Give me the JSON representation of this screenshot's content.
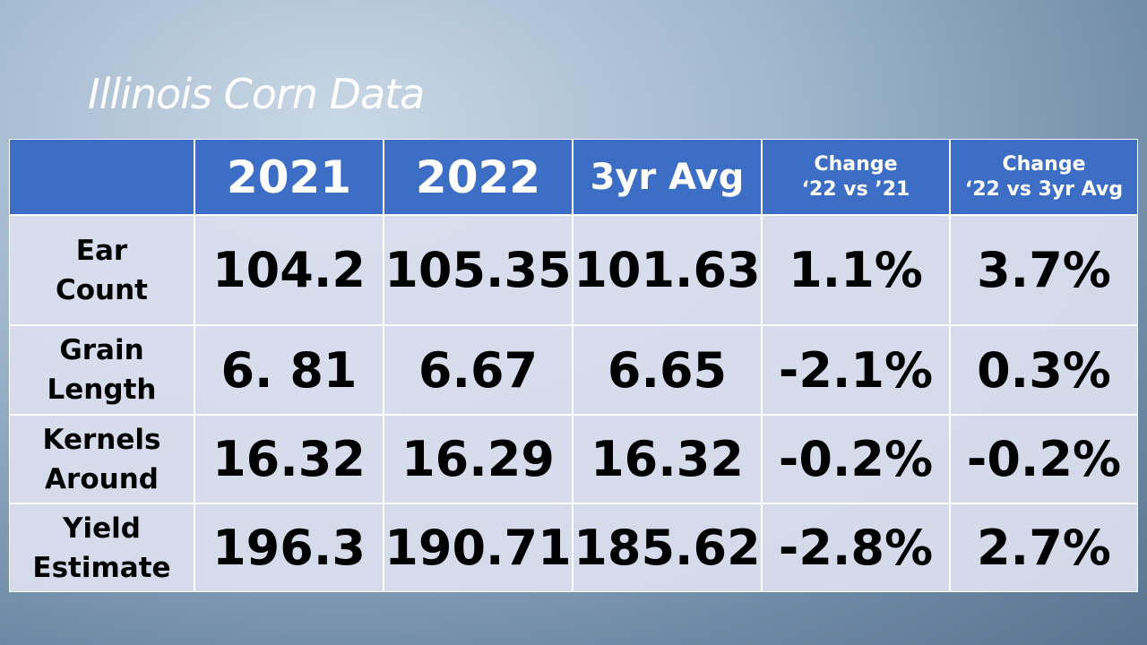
{
  "title": "Illinois Corn Data",
  "table": {
    "header": [
      [
        "2021"
      ],
      [
        "2022"
      ],
      [
        "3yr Avg"
      ],
      [
        "Change",
        "‘22 vs ’21"
      ],
      [
        "Change",
        "‘22 vs 3yr Avg"
      ]
    ],
    "rows": [
      {
        "label": [
          "Ear",
          "Count"
        ],
        "values": [
          "104.2",
          "105.35",
          "101.63",
          "1.1%",
          "3.7%"
        ]
      },
      {
        "label": [
          "Grain",
          "Length"
        ],
        "values": [
          "6. 81",
          "6.67",
          "6.65",
          "-2.1%",
          "0.3%"
        ]
      },
      {
        "label": [
          "Kernels",
          "Around"
        ],
        "values": [
          "16.32",
          "16.29",
          "16.32",
          "-0.2%",
          "-0.2%"
        ]
      },
      {
        "label": [
          "Yield",
          "Estimate"
        ],
        "values": [
          "196.3",
          "190.71",
          "185.62",
          "-2.8%",
          "2.7%"
        ]
      }
    ]
  }
}
